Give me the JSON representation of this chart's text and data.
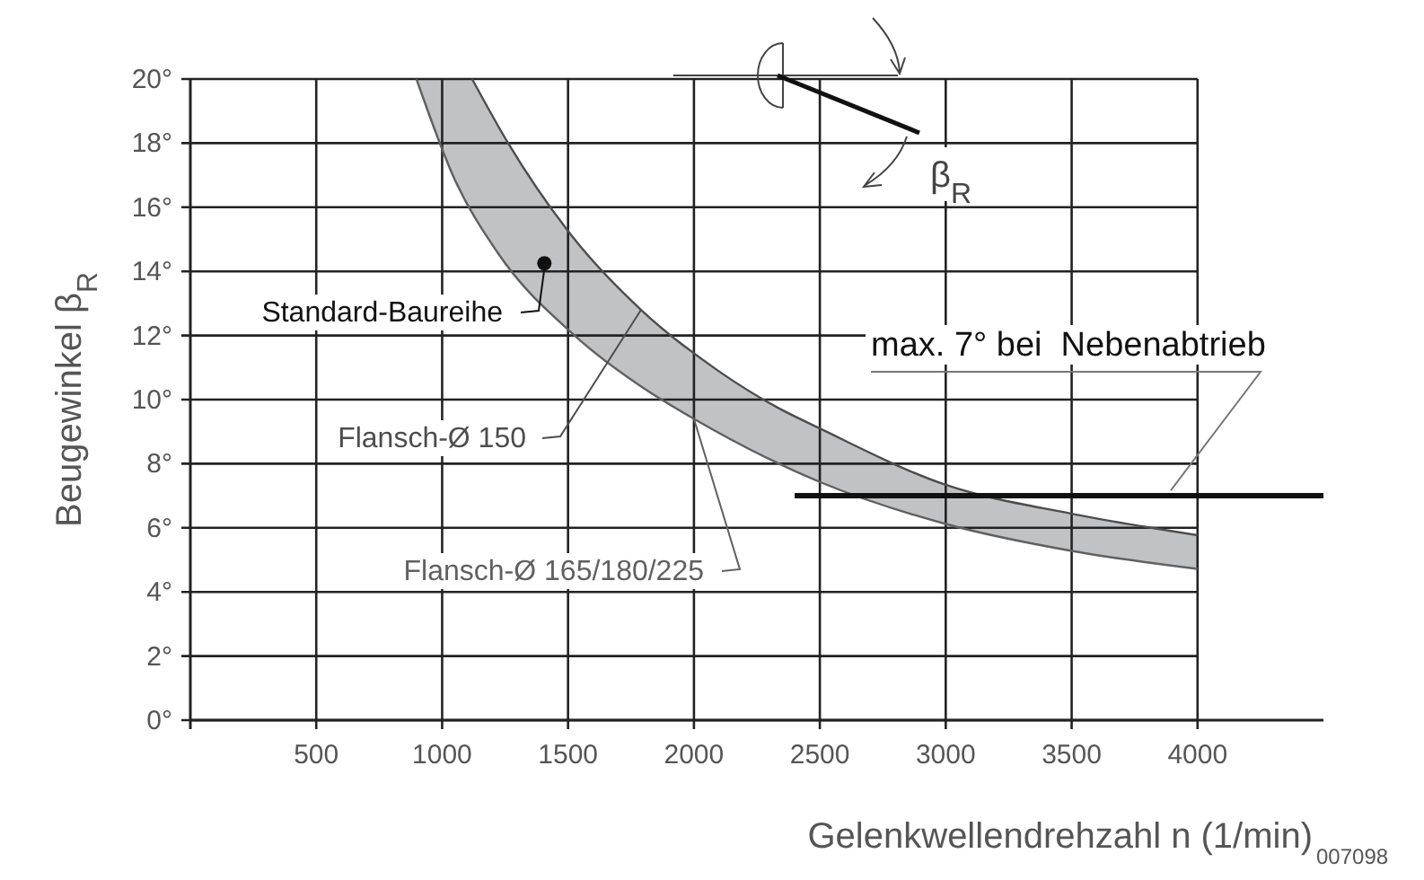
{
  "chart_data": {
    "type": "line",
    "xlabel": "Gelenkwellendrehzahl n (1/min)",
    "ylabel": "Beugewinkel β$_{R}$",
    "xlim": [
      0,
      4500
    ],
    "ylim": [
      0,
      20
    ],
    "xticks": [
      500,
      1000,
      1500,
      2000,
      2500,
      3000,
      3500,
      4000
    ],
    "yticks": [
      {
        "value": 0,
        "label": "0°"
      },
      {
        "value": 2,
        "label": "2°"
      },
      {
        "value": 4,
        "label": "4°"
      },
      {
        "value": 6,
        "label": "6°"
      },
      {
        "value": 8,
        "label": "8°"
      },
      {
        "value": 10,
        "label": "10°"
      },
      {
        "value": 12,
        "label": "12°"
      },
      {
        "value": 14,
        "label": "14°"
      },
      {
        "value": 16,
        "label": "16°"
      },
      {
        "value": 18,
        "label": "18°"
      },
      {
        "value": 20,
        "label": "20°"
      }
    ],
    "grid": true,
    "legend": false,
    "marker": "none",
    "series": [
      {
        "name": "Flansch-Ø 150",
        "color": "#4d4d4d",
        "x": [
          1119,
          1262,
          1526,
          1790,
          2096,
          2332,
          2500,
          3000,
          3500,
          4000
        ],
        "values": [
          20,
          18,
          15,
          12.8,
          10.9,
          9.75,
          9.1,
          7.34,
          6.44,
          5.77
        ]
      },
      {
        "name": "Flansch-Ø 165/180/225",
        "color": "#606060",
        "x": [
          898,
          1048,
          1219,
          1526,
          1811,
          2000,
          2500,
          3000,
          3500,
          4000
        ],
        "values": [
          20,
          16.9,
          14.6,
          12,
          10.3,
          9.4,
          7.43,
          6.12,
          5.28,
          4.72
        ]
      },
      {
        "name": "Standard-Baureihe",
        "type": "scatter",
        "marker": "circle",
        "color": "#111111",
        "x": [
          1406
        ],
        "values": [
          14.25
        ]
      },
      {
        "name": "max. 7° bei  Nebenabtrieb",
        "color": "#111111",
        "x": [
          2400,
          4500
        ],
        "values": [
          7,
          7
        ]
      }
    ],
    "annotations": [
      "β$_{R}$",
      "007098"
    ]
  }
}
